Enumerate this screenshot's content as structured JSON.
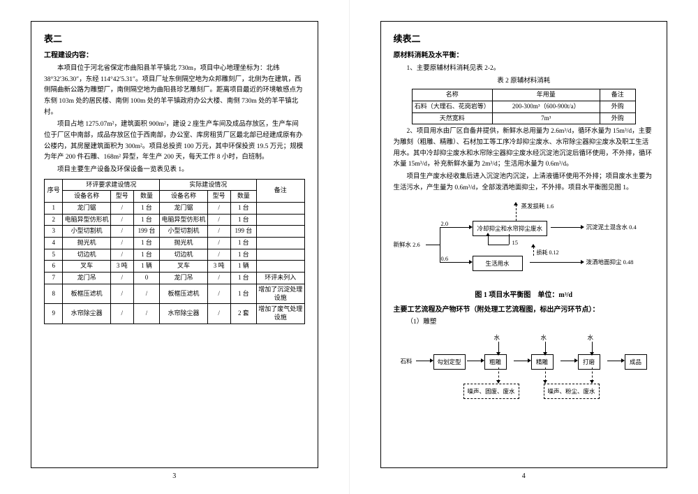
{
  "left": {
    "title": "表二",
    "section1_title": "工程建设内容：",
    "p1": "本项目位于河北省保定市曲阳县羊平镇北 730m，项目中心地理坐标为：北纬 38°32′36.30″，东经 114°42′5.31″。项目厂址东侧隔空地为众邦雕刻厂，北侧为在建筑，西侧隔曲新公路为雕塑厂，南侧隔空地为曲阳县珍艺雕刻厂。距离项目最近的环境敏感点为东侧 103m 处的居民楼、南侧 100m 处的羊平镇政府办公大楼、南侧 730m 处的羊平镇北村。",
    "p2": "项目占地 1275.07m²，建筑面积 900m²，建设 2 座生产车间及成品存放区，生产车间位于厂区中南部，成品存放区位于西南部，办公室、库房租赁厂区最北部已经建成原有办公楼内，其房屋建筑面积为 300m²。项目总投资 100 万元，其中环保投资 19.5 万元；规模为年产 200 件石雕、168m² 异型，年生产 200 天，每天工作 8 小时，白班制。",
    "p3": "项目主要生产设备及环保设备一览表见表 1。",
    "table1": {
      "headers": {
        "seq": "序号",
        "plan": "环评要求建设情况",
        "actual": "实际建设情况",
        "remark": "备注",
        "name": "设备名称",
        "model": "型号",
        "qty": "数量"
      },
      "rows": [
        {
          "n": "1",
          "dn": "龙门锯",
          "dm": "/",
          "dq": "1 台",
          "an": "龙门锯",
          "am": "/",
          "aq": "1 台",
          "r": ""
        },
        {
          "n": "2",
          "dn": "电脑异型仿形机",
          "dm": "/",
          "dq": "1 台",
          "an": "电脑异型仿形机",
          "am": "/",
          "aq": "1 台",
          "r": ""
        },
        {
          "n": "3",
          "dn": "小型切割机",
          "dm": "/",
          "dq": "199 台",
          "an": "小型切割机",
          "am": "/",
          "aq": "199 台",
          "r": ""
        },
        {
          "n": "4",
          "dn": "抛光机",
          "dm": "/",
          "dq": "1 台",
          "an": "抛光机",
          "am": "/",
          "aq": "1 台",
          "r": ""
        },
        {
          "n": "5",
          "dn": "切边机",
          "dm": "/",
          "dq": "1 台",
          "an": "切边机",
          "am": "/",
          "aq": "1 台",
          "r": ""
        },
        {
          "n": "6",
          "dn": "叉车",
          "dm": "3 吨",
          "dq": "1 辆",
          "an": "叉车",
          "am": "3 吨",
          "aq": "1 辆",
          "r": ""
        },
        {
          "n": "7",
          "dn": "龙门吊",
          "dm": "/",
          "dq": "0",
          "an": "龙门吊",
          "am": "/",
          "aq": "1 台",
          "r": "环评未列入"
        },
        {
          "n": "8",
          "dn": "板框压滤机",
          "dm": "/",
          "dq": "/",
          "an": "板框压滤机",
          "am": "/",
          "aq": "1 台",
          "r": "增加了沉淀处理设施"
        },
        {
          "n": "9",
          "dn": "水帘除尘器",
          "dm": "/",
          "dq": "/",
          "an": "水帘除尘器",
          "am": "/",
          "aq": "2 套",
          "r": "增加了废气处理设施"
        }
      ]
    },
    "page_num": "3"
  },
  "right": {
    "title": "续表二",
    "sec1": "原材料消耗及水平衡：",
    "p1": "1、主要原辅材料消耗见表 2-2。",
    "tbl2_title": "表 2 原辅材料消耗",
    "table2": {
      "headers": {
        "name": "名称",
        "usage": "年用量",
        "remark": "备注"
      },
      "rows": [
        {
          "a": "石料（大理石、花岗岩等）",
          "b": "200-300m³（600-900t/a）",
          "c": "外购"
        },
        {
          "a": "天然宽料",
          "b": "7m³",
          "c": "外购"
        }
      ]
    },
    "p2": "2、项目用水由厂区自备井提供，新鲜水总用量为 2.6m³/d，循环水量为 15m³/d，主要为雕刻（粗雕、精雕）、石材加工等工序冷却抑尘废水、水帘除尘器抑尘废水及职工生活用水。其中冷却抑尘废水和水帘除尘器抑尘废水经沉淀池沉淀后循环使用，不外排，循环水量 15m³/d，补充新鲜水量为 2m³/d；生活用水量为 0.6m³/d。",
    "p3": "项目生产废水经收集后进入沉淀池内沉淀，上清液循环使用不外排；项目废水主要为生活污水，产生量为 0.6m³/d，全部泼洒地面抑尘，不外排。项目水平衡图见图 1。",
    "wb": {
      "fresh": "新鲜水 2.6",
      "v20": "2.0",
      "v06": "0.6",
      "box1": "冷却抑尘和水帘抑尘废水",
      "box2": "生活用水",
      "evap": "蒸发损耗 1.6",
      "mud": "沉淀泥土混含水 0.4",
      "loss": "损耗 0.12",
      "sprinkle": "泼洒地面抑尘 0.48",
      "c15": "15"
    },
    "wb_caption": "图 1 项目水平衡图　单位：m³/d",
    "sec2": "主要工艺流程及产物环节（附处理工艺流程图，标出产污环节点）：",
    "sec2_sub": "（1）雕塑",
    "flow": {
      "stone": "石料",
      "n1": "勾划定型",
      "n2": "粗雕",
      "n3": "精雕",
      "n4": "打磨",
      "n5": "成品",
      "water": "水",
      "waste1": "噪声、固废、废水",
      "waste2": "噪声、粉尘、废水"
    },
    "page_num": "4"
  }
}
